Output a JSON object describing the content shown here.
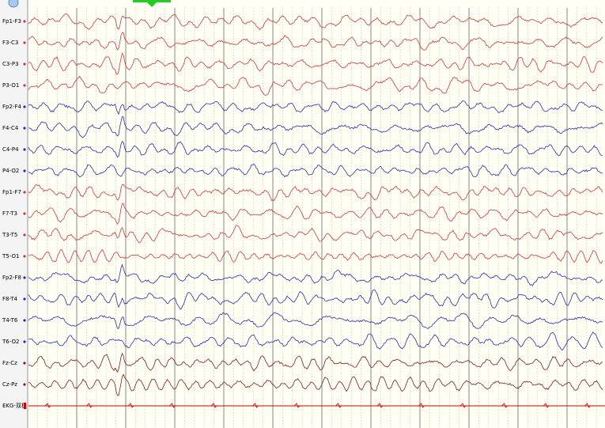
{
  "channels": [
    "Fp1-F3",
    "F3-C3",
    "C3-P3",
    "P3-O1",
    "Fp2-F4",
    "F4-C4",
    "C4-P4",
    "P4-O2",
    "Fp1-F7",
    "F7-T3",
    "T3-T5",
    "T5-O1",
    "Fp2-F8",
    "F8-T4",
    "T4-T6",
    "T6-O2",
    "Fz-Cz",
    "Cz-Pz",
    "EKG-双极"
  ]
}
